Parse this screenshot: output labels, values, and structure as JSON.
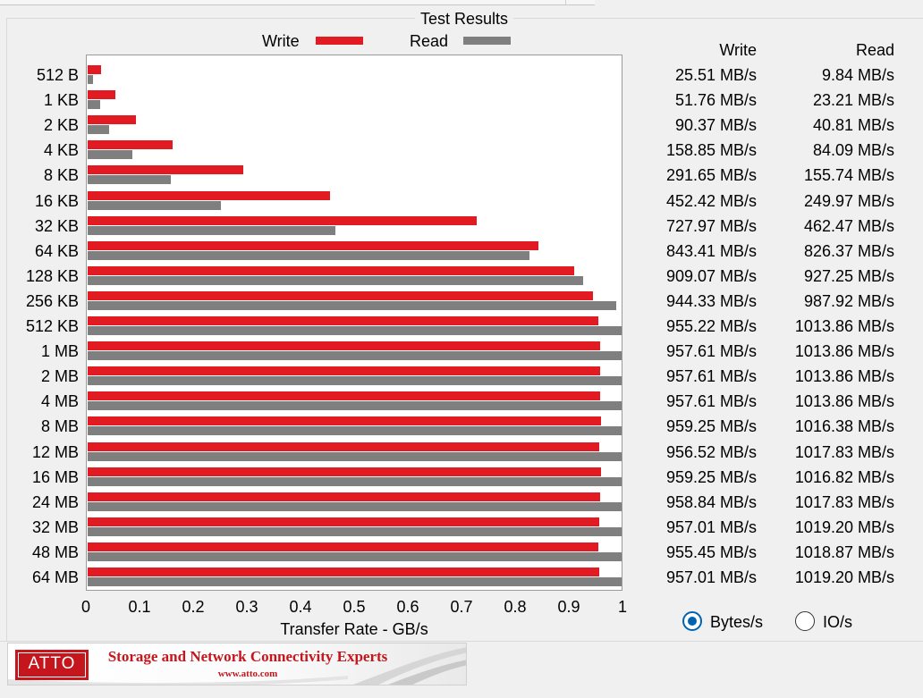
{
  "group_title": "Test Results",
  "legend": {
    "write_label": "Write",
    "read_label": "Read",
    "write_color": "#e21b22",
    "read_color": "#7f7f7f"
  },
  "table": {
    "write_header": "Write",
    "read_header": "Read",
    "rows": [
      {
        "size": "512 B",
        "write": "25.51 MB/s",
        "read": "9.84 MB/s"
      },
      {
        "size": "1 KB",
        "write": "51.76 MB/s",
        "read": "23.21 MB/s"
      },
      {
        "size": "2 KB",
        "write": "90.37 MB/s",
        "read": "40.81 MB/s"
      },
      {
        "size": "4 KB",
        "write": "158.85 MB/s",
        "read": "84.09 MB/s"
      },
      {
        "size": "8 KB",
        "write": "291.65 MB/s",
        "read": "155.74 MB/s"
      },
      {
        "size": "16 KB",
        "write": "452.42 MB/s",
        "read": "249.97 MB/s"
      },
      {
        "size": "32 KB",
        "write": "727.97 MB/s",
        "read": "462.47 MB/s"
      },
      {
        "size": "64 KB",
        "write": "843.41 MB/s",
        "read": "826.37 MB/s"
      },
      {
        "size": "128 KB",
        "write": "909.07 MB/s",
        "read": "927.25 MB/s"
      },
      {
        "size": "256 KB",
        "write": "944.33 MB/s",
        "read": "987.92 MB/s"
      },
      {
        "size": "512 KB",
        "write": "955.22 MB/s",
        "read": "1013.86 MB/s"
      },
      {
        "size": "1 MB",
        "write": "957.61 MB/s",
        "read": "1013.86 MB/s"
      },
      {
        "size": "2 MB",
        "write": "957.61 MB/s",
        "read": "1013.86 MB/s"
      },
      {
        "size": "4 MB",
        "write": "957.61 MB/s",
        "read": "1013.86 MB/s"
      },
      {
        "size": "8 MB",
        "write": "959.25 MB/s",
        "read": "1016.38 MB/s"
      },
      {
        "size": "12 MB",
        "write": "956.52 MB/s",
        "read": "1017.83 MB/s"
      },
      {
        "size": "16 MB",
        "write": "959.25 MB/s",
        "read": "1016.82 MB/s"
      },
      {
        "size": "24 MB",
        "write": "958.84 MB/s",
        "read": "1017.83 MB/s"
      },
      {
        "size": "32 MB",
        "write": "957.01 MB/s",
        "read": "1019.20 MB/s"
      },
      {
        "size": "48 MB",
        "write": "955.45 MB/s",
        "read": "1018.87 MB/s"
      },
      {
        "size": "64 MB",
        "write": "957.01 MB/s",
        "read": "1019.20 MB/s"
      }
    ]
  },
  "chart_data": {
    "type": "bar",
    "orientation": "horizontal",
    "xlabel": "Transfer Rate - GB/s",
    "xlim": [
      0,
      1
    ],
    "xticks": [
      "0",
      "0.1",
      "0.2",
      "0.3",
      "0.4",
      "0.5",
      "0.6",
      "0.7",
      "0.8",
      "0.9",
      "1"
    ],
    "grid": false,
    "legend_position": "top",
    "categories": [
      "512 B",
      "1 KB",
      "2 KB",
      "4 KB",
      "8 KB",
      "16 KB",
      "32 KB",
      "64 KB",
      "128 KB",
      "256 KB",
      "512 KB",
      "1 MB",
      "2 MB",
      "4 MB",
      "8 MB",
      "12 MB",
      "16 MB",
      "24 MB",
      "32 MB",
      "48 MB",
      "64 MB"
    ],
    "series": [
      {
        "name": "Write",
        "color": "#e21b22",
        "values": [
          0.02551,
          0.05176,
          0.09037,
          0.15885,
          0.29165,
          0.45242,
          0.72797,
          0.84341,
          0.90907,
          0.94433,
          0.95522,
          0.95761,
          0.95761,
          0.95761,
          0.95925,
          0.95652,
          0.95925,
          0.95884,
          0.95701,
          0.95545,
          0.95701
        ]
      },
      {
        "name": "Read",
        "color": "#7f7f7f",
        "values": [
          0.00984,
          0.02321,
          0.04081,
          0.08409,
          0.15574,
          0.24997,
          0.46247,
          0.82637,
          0.92725,
          0.98792,
          1.01386,
          1.01386,
          1.01386,
          1.01386,
          1.01638,
          1.01783,
          1.01682,
          1.01783,
          1.0192,
          1.01887,
          1.0192
        ]
      }
    ]
  },
  "units": {
    "options": [
      {
        "label": "Bytes/s",
        "selected": true
      },
      {
        "label": "IO/s",
        "selected": false
      }
    ]
  },
  "banner": {
    "logo_text": "ATTO",
    "tagline": "Storage and Network Connectivity Experts",
    "url": "www.atto.com"
  }
}
